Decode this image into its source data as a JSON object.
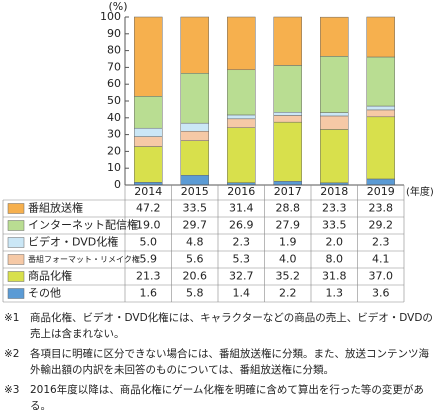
{
  "chart_data": {
    "type": "stacked-bar-table",
    "y_unit_label": "(%)",
    "x_unit_label": "(年度)",
    "categories": [
      "2014",
      "2015",
      "2016",
      "2017",
      "2018",
      "2019"
    ],
    "ylim": [
      0,
      100
    ],
    "yticks": [
      0,
      10,
      20,
      30,
      40,
      50,
      60,
      70,
      80,
      90,
      100
    ],
    "series": [
      {
        "name": "番組放送権",
        "color": "#f6b04e",
        "values": [
          47.2,
          33.5,
          31.4,
          28.8,
          23.3,
          23.8
        ],
        "value_labels": [
          "47.2",
          "33.5",
          "31.4",
          "28.8",
          "23.3",
          "23.8"
        ]
      },
      {
        "name": "インターネット配信権",
        "color": "#b9dd92",
        "values": [
          19.0,
          29.7,
          26.9,
          27.9,
          33.5,
          29.2
        ],
        "value_labels": [
          "19.0",
          "29.7",
          "26.9",
          "27.9",
          "33.5",
          "29.2"
        ]
      },
      {
        "name": "ビデオ・DVD化権",
        "color": "#cbe7f6",
        "values": [
          5.0,
          4.8,
          2.3,
          1.9,
          2.0,
          2.3
        ],
        "value_labels": [
          "5.0",
          "4.8",
          "2.3",
          "1.9",
          "2.0",
          "2.3"
        ]
      },
      {
        "name": "番組フォーマット・リメイク権",
        "color": "#f6c9a6",
        "values": [
          5.9,
          5.6,
          5.3,
          4.0,
          8.0,
          4.1
        ],
        "value_labels": [
          "5.9",
          "5.6",
          "5.3",
          "4.0",
          "8.0",
          "4.1"
        ]
      },
      {
        "name": "商品化権",
        "color": "#d8e04c",
        "values": [
          21.3,
          20.6,
          32.7,
          35.2,
          31.8,
          37.0
        ],
        "value_labels": [
          "21.3",
          "20.6",
          "32.7",
          "35.2",
          "31.8",
          "37.0"
        ]
      },
      {
        "name": "その他",
        "color": "#5b9bd5",
        "values": [
          1.6,
          5.8,
          1.4,
          2.2,
          1.3,
          3.6
        ],
        "value_labels": [
          "1.6",
          "5.8",
          "1.4",
          "2.2",
          "1.3",
          "3.6"
        ]
      }
    ]
  },
  "notes": [
    {
      "marker": "※1",
      "text": "商品化権、ビデオ・DVD化権には、キャラクターなどの商品の売上、ビデオ・DVDの売上は含まれない。"
    },
    {
      "marker": "※2",
      "text": "各項目に明確に区分できない場合には、番組放送権に分類。また、放送コンテンツ海外輸出額の内訳を未回答のものについては、番組放送権に分類。"
    },
    {
      "marker": "※3",
      "text": "2016年度以降は、商品化権にゲーム化権を明確に含めて算出を行った等の変更がある。"
    }
  ]
}
